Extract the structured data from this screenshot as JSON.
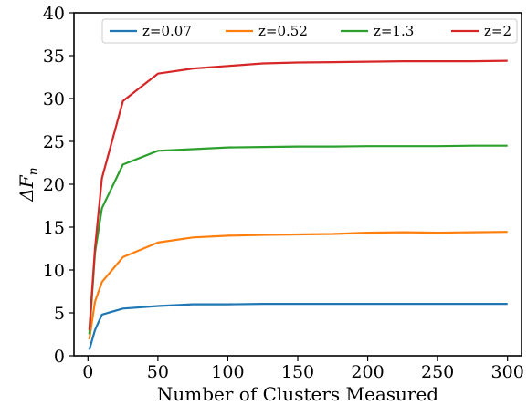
{
  "chart_data": {
    "type": "line",
    "title": "",
    "xlabel": "Number of Clusters Measured",
    "ylabel": "ΔF",
    "ylabel_subscript": "n",
    "xlim": [
      -10,
      310
    ],
    "ylim": [
      0,
      40
    ],
    "xticks": [
      0,
      50,
      100,
      150,
      200,
      250,
      300
    ],
    "yticks": [
      0,
      5,
      10,
      15,
      20,
      25,
      30,
      35,
      40
    ],
    "grid": false,
    "legend_position": "top",
    "x": [
      1,
      5,
      10,
      25,
      50,
      75,
      100,
      125,
      150,
      175,
      200,
      225,
      250,
      275,
      300
    ],
    "series": [
      {
        "name": "z=0.07",
        "color": "#1f77b4",
        "values": [
          0.7,
          3.0,
          4.8,
          5.5,
          5.8,
          6.0,
          6.0,
          6.05,
          6.05,
          6.05,
          6.05,
          6.05,
          6.05,
          6.05,
          6.05
        ]
      },
      {
        "name": "z=0.52",
        "color": "#ff7f0e",
        "values": [
          1.9,
          6.3,
          8.6,
          11.5,
          13.2,
          13.8,
          14.0,
          14.1,
          14.15,
          14.2,
          14.35,
          14.4,
          14.35,
          14.4,
          14.45
        ]
      },
      {
        "name": "z=1.3",
        "color": "#2ca02c",
        "values": [
          2.5,
          12.0,
          17.2,
          22.3,
          23.9,
          24.1,
          24.3,
          24.35,
          24.4,
          24.4,
          24.45,
          24.45,
          24.45,
          24.5,
          24.5
        ]
      },
      {
        "name": "z=2",
        "color": "#d62728",
        "values": [
          3.0,
          12.5,
          20.7,
          29.7,
          32.9,
          33.5,
          33.8,
          34.1,
          34.2,
          34.25,
          34.3,
          34.35,
          34.35,
          34.35,
          34.4
        ]
      }
    ]
  }
}
